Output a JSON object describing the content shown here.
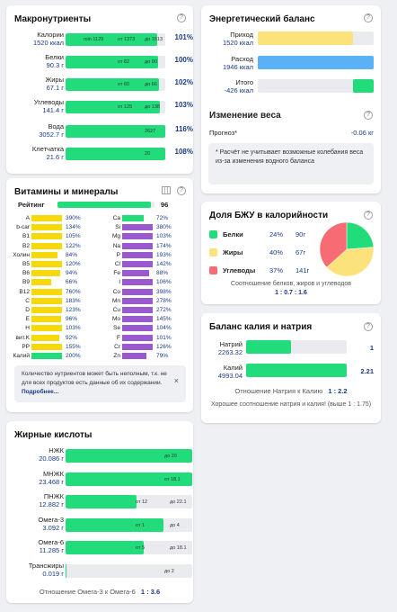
{
  "macros": {
    "title": "Макронутриенты",
    "rows": [
      {
        "name": "Калории",
        "value": "1520 ккал",
        "min": "min 1129",
        "from": "от 1373",
        "to": "до 1513",
        "pct": "101%",
        "fill": 0.92
      },
      {
        "name": "Белки",
        "value": "90.3 г",
        "from": "от 82",
        "to": "до 90",
        "pct": "100%",
        "fill": 0.93
      },
      {
        "name": "Жиры",
        "value": "67.1 г",
        "from": "от 60",
        "to": "до 66",
        "pct": "102%",
        "fill": 0.94
      },
      {
        "name": "Углеводы",
        "value": "141.4 г",
        "from": "от 125",
        "to": "до 138",
        "pct": "103%",
        "fill": 0.95
      },
      {
        "name": "Вода",
        "value": "3052.7 г",
        "to": "2627",
        "pct": "116%",
        "fill": 1.0
      },
      {
        "name": "Клетчатка",
        "value": "21.6 г",
        "to": "20",
        "pct": "108%",
        "fill": 1.0
      }
    ]
  },
  "vitamins": {
    "title": "Витамины и минералы",
    "rating_label": "Рейтинг",
    "rating_value": "96",
    "rating_fill": 0.96,
    "left": [
      {
        "name": "A",
        "pct": "390%",
        "fill": 1.0,
        "color": "#f5d90a"
      },
      {
        "name": "b-car",
        "pct": "134%",
        "fill": 1.0,
        "color": "#f5d90a"
      },
      {
        "name": "B1",
        "pct": "105%",
        "fill": 1.0,
        "color": "#f5d90a"
      },
      {
        "name": "B2",
        "pct": "122%",
        "fill": 1.0,
        "color": "#f5d90a"
      },
      {
        "name": "Холин",
        "pct": "84%",
        "fill": 0.84,
        "color": "#f5d90a"
      },
      {
        "name": "B5",
        "pct": "120%",
        "fill": 1.0,
        "color": "#f5d90a"
      },
      {
        "name": "B6",
        "pct": "94%",
        "fill": 0.94,
        "color": "#f5d90a"
      },
      {
        "name": "B9",
        "pct": "66%",
        "fill": 0.66,
        "color": "#f5d90a"
      },
      {
        "name": "B12",
        "pct": "760%",
        "fill": 1.0,
        "color": "#f5d90a"
      },
      {
        "name": "C",
        "pct": "183%",
        "fill": 1.0,
        "color": "#f5d90a"
      },
      {
        "name": "D",
        "pct": "123%",
        "fill": 1.0,
        "color": "#f5d90a"
      },
      {
        "name": "E",
        "pct": "96%",
        "fill": 0.96,
        "color": "#f5d90a"
      },
      {
        "name": "H",
        "pct": "103%",
        "fill": 1.0,
        "color": "#f5d90a"
      },
      {
        "name": "вит.K",
        "pct": "92%",
        "fill": 0.92,
        "color": "#f5d90a"
      },
      {
        "name": "PP",
        "pct": "155%",
        "fill": 1.0,
        "color": "#f5d90a"
      },
      {
        "name": "Калий",
        "pct": "200%",
        "fill": 1.0,
        "color": "#22dc7c"
      }
    ],
    "right": [
      {
        "name": "Ca",
        "pct": "72%",
        "fill": 0.72,
        "color": "#22dc7c"
      },
      {
        "name": "Si",
        "pct": "380%",
        "fill": 1.0,
        "color": "#9b59d0"
      },
      {
        "name": "Mg",
        "pct": "103%",
        "fill": 1.0,
        "color": "#9b59d0"
      },
      {
        "name": "Na",
        "pct": "174%",
        "fill": 1.0,
        "color": "#9b59d0"
      },
      {
        "name": "P",
        "pct": "193%",
        "fill": 1.0,
        "color": "#9b59d0"
      },
      {
        "name": "Cl",
        "pct": "142%",
        "fill": 1.0,
        "color": "#9b59d0"
      },
      {
        "name": "Fe",
        "pct": "88%",
        "fill": 0.88,
        "color": "#9b59d0"
      },
      {
        "name": "I",
        "pct": "106%",
        "fill": 1.0,
        "color": "#9b59d0"
      },
      {
        "name": "Co",
        "pct": "398%",
        "fill": 1.0,
        "color": "#9b59d0"
      },
      {
        "name": "Mn",
        "pct": "278%",
        "fill": 1.0,
        "color": "#9b59d0"
      },
      {
        "name": "Cu",
        "pct": "272%",
        "fill": 1.0,
        "color": "#9b59d0"
      },
      {
        "name": "Mo",
        "pct": "145%",
        "fill": 1.0,
        "color": "#9b59d0"
      },
      {
        "name": "Se",
        "pct": "104%",
        "fill": 1.0,
        "color": "#9b59d0"
      },
      {
        "name": "F",
        "pct": "101%",
        "fill": 1.0,
        "color": "#9b59d0"
      },
      {
        "name": "Cr",
        "pct": "126%",
        "fill": 1.0,
        "color": "#9b59d0"
      },
      {
        "name": "Zn",
        "pct": "79%",
        "fill": 0.79,
        "color": "#9b59d0"
      }
    ],
    "note_text": "Количество нутриентов может быть неполным, т.к. не для всех продуктов есть данные об их содержании.",
    "note_link": "Подробнее...",
    "note_close": "×"
  },
  "fatty": {
    "title": "Жирные кислоты",
    "rows": [
      {
        "name": "НЖК",
        "value": "20.086 г",
        "label": "до 20",
        "fill": 1.0,
        "color": "#22dc7c"
      },
      {
        "name": "МНЖК",
        "value": "23.468 г",
        "label": "от 18.1",
        "fill": 1.0,
        "color": "#22dc7c"
      },
      {
        "name": "ПНЖК",
        "value": "12.882 г",
        "label": "от 12",
        "label2": "до 22.1",
        "fill": 0.56,
        "color": "#22dc7c"
      },
      {
        "name": "Омега-3",
        "value": "3.092 г",
        "label": "от 1",
        "label2": "до 4",
        "fill": 0.77,
        "color": "#22dc7c"
      },
      {
        "name": "Омега-6",
        "value": "11.285 г",
        "label": "от 5",
        "label2": "до 18.1",
        "fill": 0.62,
        "color": "#22dc7c"
      },
      {
        "name": "Трансжиры",
        "value": "0.019 г",
        "label": "до 2",
        "fill": 0.01,
        "color": "#22dc7c"
      }
    ],
    "ratio_label": "Отношение Омега-3 к Омега-6",
    "ratio_value": "1 : 3.6"
  },
  "energy": {
    "title": "Энергетический баланс",
    "income_label": "Приход",
    "income_value": "1520 ккал",
    "income_fill": 0.82,
    "outcome_label": "Расход",
    "outcome_value": "1946 ккал",
    "outcome_fill": 1.0,
    "total_label": "Итого",
    "total_value": "-426 ккал",
    "total_fill": 0.18
  },
  "weight": {
    "title": "Изменение веса",
    "forecast_label": "Прогноз*",
    "forecast_value": "-0.06 кг",
    "note": "* Расчёт не учитывает возможные колебания веса из-за изменения водного баланса"
  },
  "bju": {
    "title": "Доля БЖУ в калорийности",
    "items": [
      {
        "name": "Белки",
        "pct": "24%",
        "value": "90г",
        "color": "#22dc7c",
        "share": 24
      },
      {
        "name": "Жиры",
        "pct": "40%",
        "value": "67г",
        "color": "#fce27a",
        "share": 40
      },
      {
        "name": "Углеводы",
        "pct": "37%",
        "value": "141г",
        "color": "#f76b74",
        "share": 37
      }
    ],
    "ratio_label": "Соотношение белков, жиров и углеводов",
    "ratio_value": "1 : 0.7 : 1.6"
  },
  "kna": {
    "title": "Баланс калия и натрия",
    "na_label": "Натрий",
    "na_value": "2263.32",
    "na_ratio": "1",
    "na_fill": 0.45,
    "k_label": "Калий",
    "k_value": "4993.04",
    "k_ratio": "2.21",
    "k_fill": 1.0,
    "ratio_label": "Отношение Натрия к Калию",
    "ratio_value": "1 : 2.2",
    "summary": "Хорошее соотношение натрия и калия! (выше 1 : 1.75)"
  },
  "icons": {
    "help": "?"
  }
}
